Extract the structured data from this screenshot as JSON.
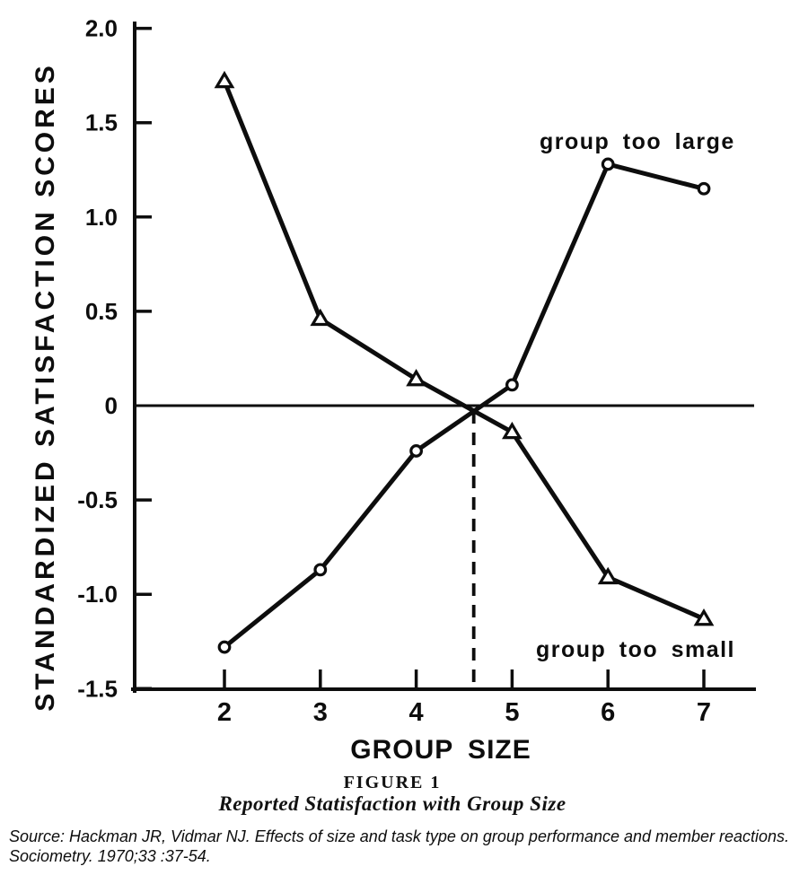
{
  "chart_data": {
    "type": "line",
    "title": "",
    "xlabel": "GROUP SIZE",
    "ylabel": "STANDARDIZED SATISFACTION SCORES",
    "x": [
      2,
      3,
      4,
      5,
      6,
      7
    ],
    "x_ticks": [
      2,
      3,
      4,
      5,
      6,
      7
    ],
    "xlim": [
      1.1,
      7.5
    ],
    "ylim": [
      -1.5,
      2.0
    ],
    "y_ticks": [
      2.0,
      1.5,
      1.0,
      0.5,
      0,
      -0.5,
      -1.0,
      -1.5
    ],
    "y_tick_labels": [
      "2.0",
      "1.5",
      "1.0",
      "0.5",
      "0",
      "-0.5",
      "-1.0",
      "-1.5"
    ],
    "grid": false,
    "legend": "inline-labels",
    "series": [
      {
        "name": "group too small",
        "marker": "triangle",
        "values": [
          1.72,
          0.46,
          0.14,
          -0.14,
          -0.91,
          -1.13
        ]
      },
      {
        "name": "group too large",
        "marker": "circle",
        "values": [
          -1.28,
          -0.87,
          -0.24,
          0.11,
          1.28,
          1.15
        ]
      }
    ],
    "annotations": {
      "zero_line": true,
      "dashed_vertical_x": 4.6
    }
  },
  "caption": {
    "figure_label": "FIGURE 1",
    "figure_title": "Reported Statisfaction with Group Size"
  },
  "source": {
    "line1": "Source: Hackman JR, Vidmar NJ. Effects of size and task type on group performance and member reactions.",
    "line2": "Sociometry. 1970;33 :37-54."
  },
  "colors": {
    "ink": "#0d0d0d",
    "background": "#ffffff"
  }
}
